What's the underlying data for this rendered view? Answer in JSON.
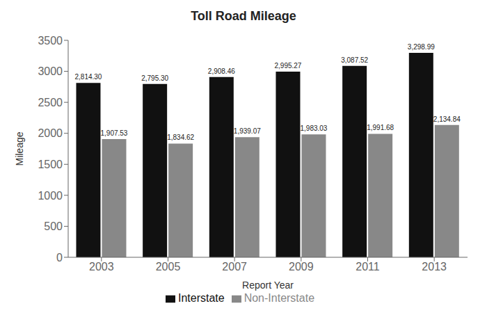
{
  "chart_data": {
    "type": "bar",
    "title": "Toll Road Mileage",
    "xlabel": "Report Year",
    "ylabel": "Mileage",
    "categories": [
      "2003",
      "2005",
      "2007",
      "2009",
      "2011",
      "2013"
    ],
    "series": [
      {
        "name": "Interstate",
        "color": "#111111",
        "values": [
          2814.3,
          2795.3,
          2908.46,
          2995.27,
          3087.52,
          3298.99
        ],
        "value_labels": [
          "2,814.30",
          "2,795.30",
          "2,908.46",
          "2,995.27",
          "3,087.52",
          "3,298.99"
        ]
      },
      {
        "name": "Non-Interstate",
        "color": "#888888",
        "values": [
          1907.53,
          1834.62,
          1939.07,
          1983.03,
          1991.68,
          2134.84
        ],
        "value_labels": [
          "1,907.53",
          "1,834.62",
          "1,939.07",
          "1,983.03",
          "1,991.68",
          "2,134.84"
        ]
      }
    ],
    "ylim": [
      0,
      3500
    ],
    "yticks": [
      0,
      500,
      1000,
      1500,
      2000,
      2500,
      3000,
      3500
    ],
    "data_labels": true,
    "grid": false,
    "legend": "bottom"
  }
}
